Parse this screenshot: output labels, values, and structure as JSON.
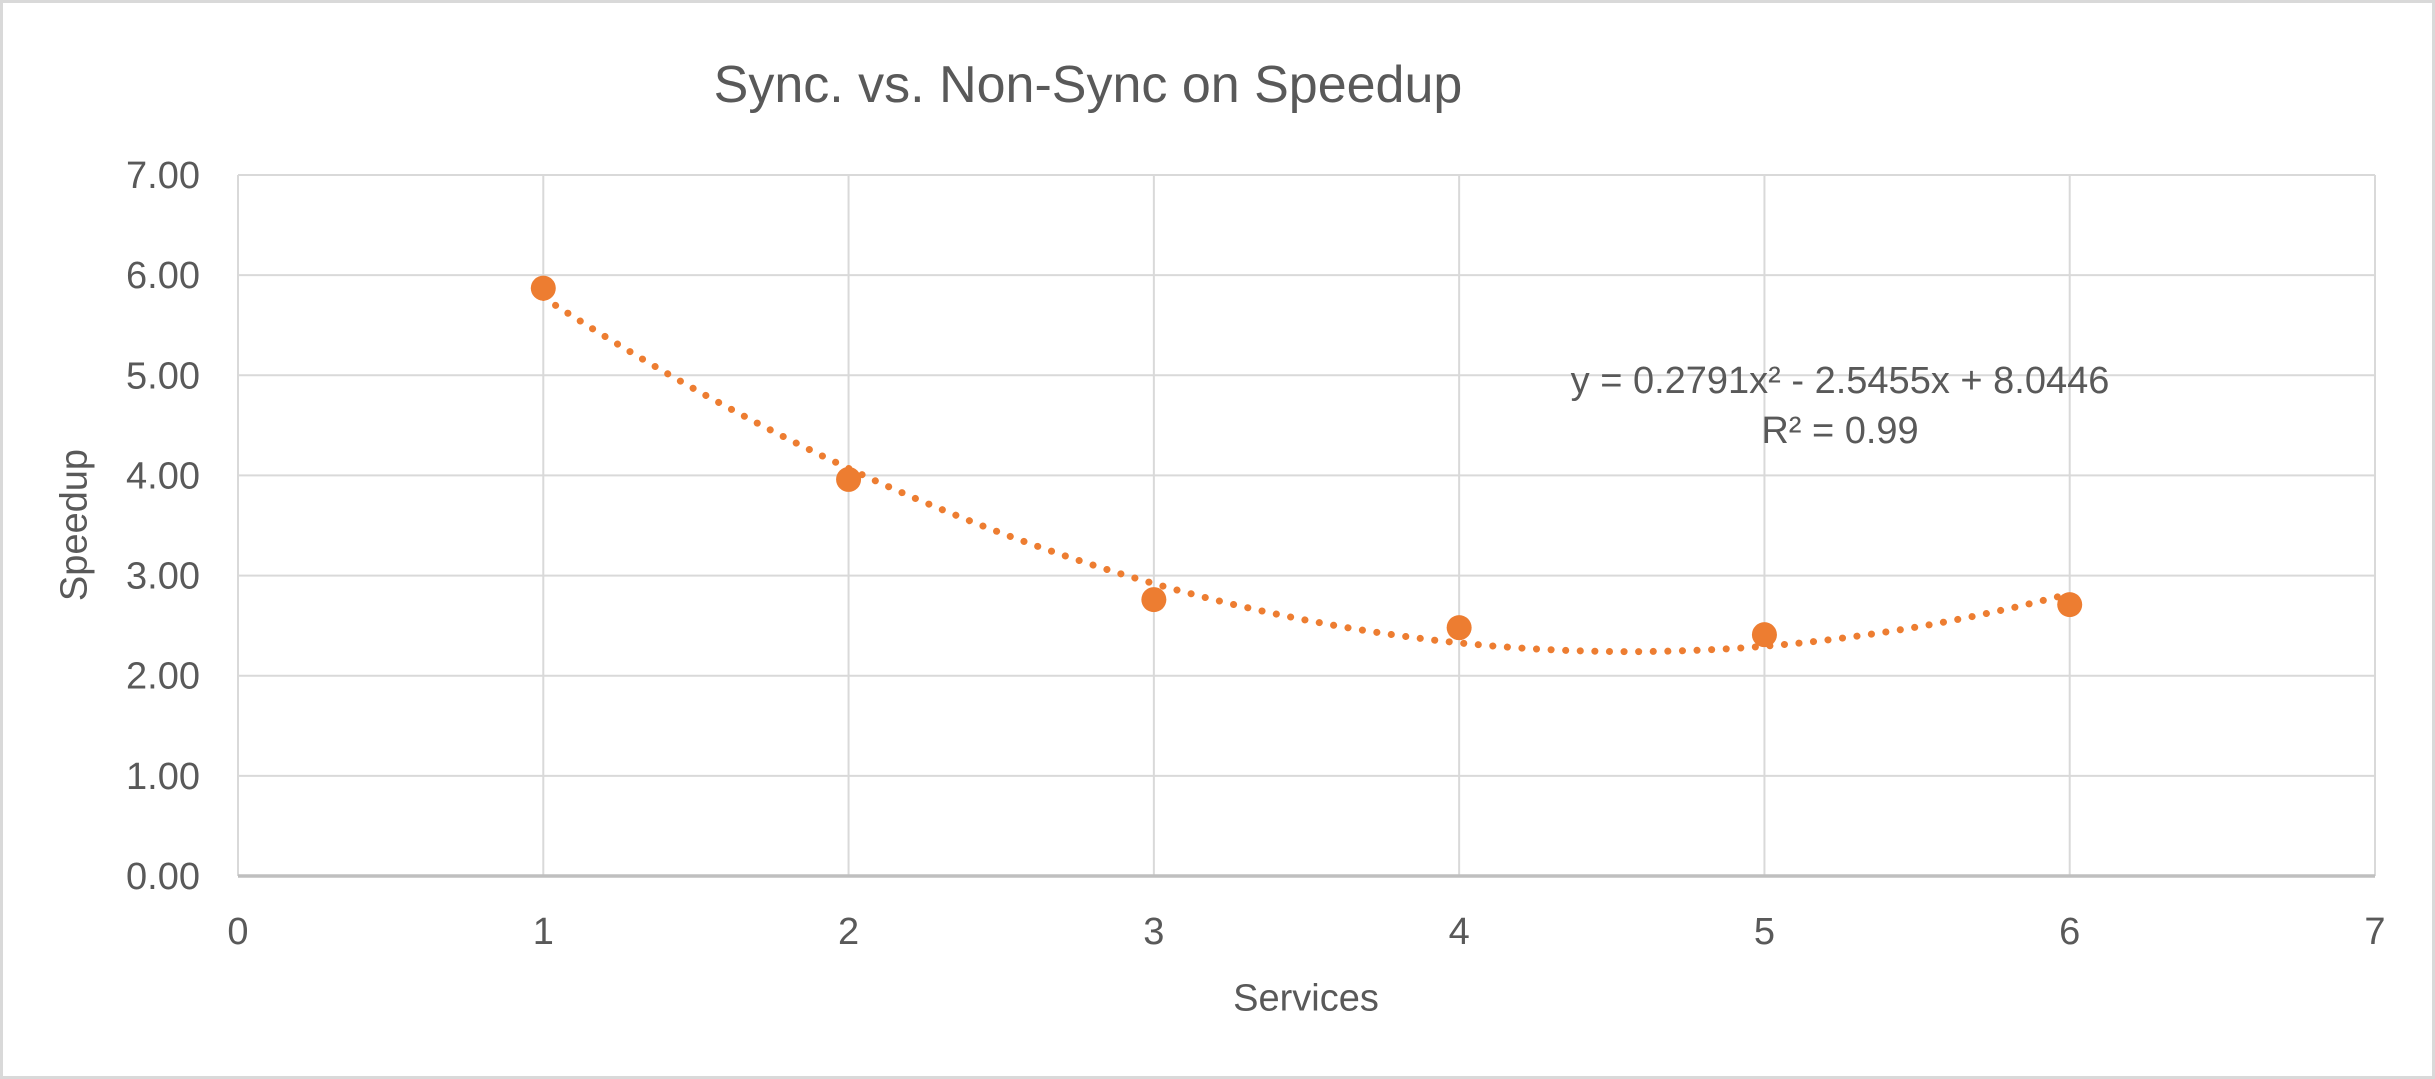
{
  "chart_data": {
    "type": "scatter",
    "title": "Sync. vs. Non-Sync on Speedup",
    "xlabel": "Services",
    "ylabel": "Speedup",
    "x": [
      1,
      2,
      3,
      4,
      5,
      6
    ],
    "values": [
      5.87,
      3.96,
      2.76,
      2.48,
      2.41,
      2.71
    ],
    "xlim": [
      0,
      7
    ],
    "ylim": [
      0,
      7
    ],
    "x_ticks": [
      "0",
      "1",
      "2",
      "3",
      "4",
      "5",
      "6",
      "7"
    ],
    "y_ticks": [
      "0.00",
      "1.00",
      "2.00",
      "3.00",
      "4.00",
      "5.00",
      "6.00",
      "7.00"
    ],
    "grid": true,
    "legend": "none",
    "trendline": {
      "style": "dotted",
      "kind": "polynomial-degree-2",
      "coefficients": {
        "a": 0.2791,
        "b": -2.5455,
        "c": 8.0446
      },
      "x_range": [
        1,
        6
      ],
      "label_equation": "y = 0.2791x² - 2.5455x + 8.0446",
      "label_r2": "R² = 0.99"
    },
    "colors": {
      "marker": "#ED7D31",
      "trendline": "#ED7D31",
      "gridline": "#D9D9D9",
      "axis_line": "#BFBFBF",
      "text": "#595959",
      "frame_border": "#D9D9D9",
      "background": "#FFFFFF"
    }
  }
}
